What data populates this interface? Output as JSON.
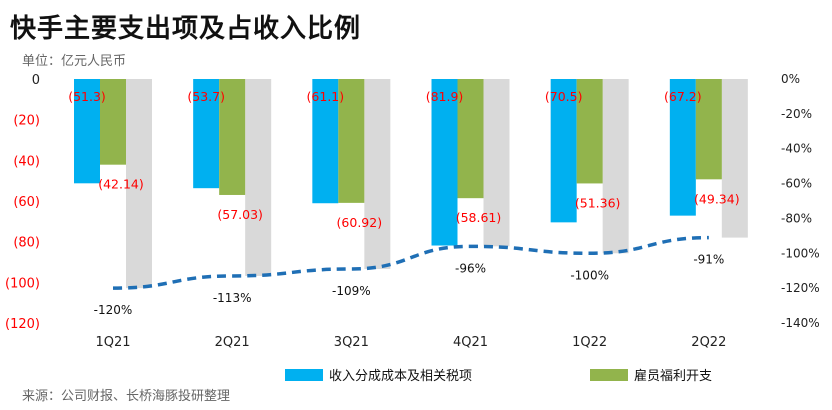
{
  "header": {
    "title": "快手主要支出项及占收入比例",
    "unit": "单位：亿元人民币",
    "source": "来源：公司财报、长桥海豚投研整理"
  },
  "colors": {
    "revenue_cost": "#00b0f0",
    "employee_benefit": "#92b44c",
    "ratio_bar": "#d9d9d9",
    "ratio_line": "#1f6fb5",
    "negative_text": "#ff0000"
  },
  "chart_data": {
    "type": "bar",
    "categories": [
      "1Q21",
      "2Q21",
      "3Q21",
      "4Q21",
      "1Q22",
      "2Q22"
    ],
    "y_left": {
      "min": -120,
      "max": 0,
      "ticks": [
        0,
        -20,
        -40,
        -60,
        -80,
        -100,
        -120
      ],
      "tick_labels": [
        "0",
        "(20)",
        "(40)",
        "(60)",
        "(80)",
        "(100)",
        "(120)"
      ]
    },
    "y_right": {
      "min": -140,
      "max": 0,
      "ticks": [
        0,
        -20,
        -40,
        -60,
        -80,
        -100,
        -120,
        -140
      ],
      "tick_labels": [
        "0%",
        "-20%",
        "-40%",
        "-60%",
        "-80%",
        "-100%",
        "-120%",
        "-140%"
      ]
    },
    "series": [
      {
        "name": "收入分成成本及相关税项",
        "values": [
          -51.3,
          -53.7,
          -61.1,
          -81.9,
          -70.5,
          -67.2
        ],
        "labels": [
          "(51.3)",
          "(53.7)",
          "(61.1)",
          "(81.9)",
          "(70.5)",
          "(67.2)"
        ]
      },
      {
        "name": "雇员福利开支",
        "values": [
          -42.14,
          -57.03,
          -60.92,
          -58.61,
          -51.36,
          -49.34
        ],
        "labels": [
          "(42.14)",
          "(57.03)",
          "(60.92)",
          "(58.61)",
          "(51.36)",
          "(49.34)"
        ]
      }
    ],
    "ratio": {
      "values": [
        -1.2,
        -1.13,
        -1.09,
        -0.96,
        -1.0,
        -0.91
      ],
      "labels": [
        "-120%",
        "-113%",
        "-109%",
        "-96%",
        "-100%",
        "-91%"
      ]
    },
    "legend_position": "bottom-right"
  }
}
